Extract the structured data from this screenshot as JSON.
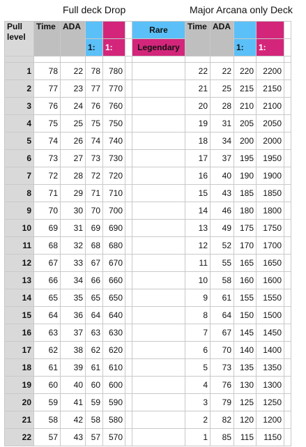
{
  "titles": {
    "left": "Full deck Drop",
    "right": "Major Arcana only Deck"
  },
  "headers": {
    "pull_level": "Pull level",
    "time": "Time",
    "ada": "ADA",
    "ratio_prefix": "1:",
    "rare": "Rare",
    "legendary": "Legendary",
    "time2": "Time",
    "ada2": "ADA"
  },
  "colors": {
    "blue": "#5bc0f8",
    "pink": "#d3267b",
    "gray": "#d9d9d9"
  },
  "rows": [
    {
      "level": "1",
      "time": "78",
      "ada": "22",
      "rare": "78",
      "leg": "780",
      "time2": "22",
      "ada2": "22",
      "rare2": "220",
      "leg2": "2200"
    },
    {
      "level": "2",
      "time": "77",
      "ada": "23",
      "rare": "77",
      "leg": "770",
      "time2": "21",
      "ada2": "25",
      "rare2": "215",
      "leg2": "2150"
    },
    {
      "level": "3",
      "time": "76",
      "ada": "24",
      "rare": "76",
      "leg": "760",
      "time2": "20",
      "ada2": "28",
      "rare2": "210",
      "leg2": "2100"
    },
    {
      "level": "4",
      "time": "75",
      "ada": "25",
      "rare": "75",
      "leg": "750",
      "time2": "19",
      "ada2": "31",
      "rare2": "205",
      "leg2": "2050"
    },
    {
      "level": "5",
      "time": "74",
      "ada": "26",
      "rare": "74",
      "leg": "740",
      "time2": "18",
      "ada2": "34",
      "rare2": "200",
      "leg2": "2000"
    },
    {
      "level": "6",
      "time": "73",
      "ada": "27",
      "rare": "73",
      "leg": "730",
      "time2": "17",
      "ada2": "37",
      "rare2": "195",
      "leg2": "1950"
    },
    {
      "level": "7",
      "time": "72",
      "ada": "28",
      "rare": "72",
      "leg": "720",
      "time2": "16",
      "ada2": "40",
      "rare2": "190",
      "leg2": "1900"
    },
    {
      "level": "8",
      "time": "71",
      "ada": "29",
      "rare": "71",
      "leg": "710",
      "time2": "15",
      "ada2": "43",
      "rare2": "185",
      "leg2": "1850"
    },
    {
      "level": "9",
      "time": "70",
      "ada": "30",
      "rare": "70",
      "leg": "700",
      "time2": "14",
      "ada2": "46",
      "rare2": "180",
      "leg2": "1800"
    },
    {
      "level": "10",
      "time": "69",
      "ada": "31",
      "rare": "69",
      "leg": "690",
      "time2": "13",
      "ada2": "49",
      "rare2": "175",
      "leg2": "1750"
    },
    {
      "level": "11",
      "time": "68",
      "ada": "32",
      "rare": "68",
      "leg": "680",
      "time2": "12",
      "ada2": "52",
      "rare2": "170",
      "leg2": "1700"
    },
    {
      "level": "12",
      "time": "67",
      "ada": "33",
      "rare": "67",
      "leg": "670",
      "time2": "11",
      "ada2": "55",
      "rare2": "165",
      "leg2": "1650"
    },
    {
      "level": "13",
      "time": "66",
      "ada": "34",
      "rare": "66",
      "leg": "660",
      "time2": "10",
      "ada2": "58",
      "rare2": "160",
      "leg2": "1600"
    },
    {
      "level": "14",
      "time": "65",
      "ada": "35",
      "rare": "65",
      "leg": "650",
      "time2": "9",
      "ada2": "61",
      "rare2": "155",
      "leg2": "1550"
    },
    {
      "level": "15",
      "time": "64",
      "ada": "36",
      "rare": "64",
      "leg": "640",
      "time2": "8",
      "ada2": "64",
      "rare2": "150",
      "leg2": "1500"
    },
    {
      "level": "16",
      "time": "63",
      "ada": "37",
      "rare": "63",
      "leg": "630",
      "time2": "7",
      "ada2": "67",
      "rare2": "145",
      "leg2": "1450"
    },
    {
      "level": "17",
      "time": "62",
      "ada": "38",
      "rare": "62",
      "leg": "620",
      "time2": "6",
      "ada2": "70",
      "rare2": "140",
      "leg2": "1400"
    },
    {
      "level": "18",
      "time": "61",
      "ada": "39",
      "rare": "61",
      "leg": "610",
      "time2": "5",
      "ada2": "73",
      "rare2": "135",
      "leg2": "1350"
    },
    {
      "level": "19",
      "time": "60",
      "ada": "40",
      "rare": "60",
      "leg": "600",
      "time2": "4",
      "ada2": "76",
      "rare2": "130",
      "leg2": "1300"
    },
    {
      "level": "20",
      "time": "59",
      "ada": "41",
      "rare": "59",
      "leg": "590",
      "time2": "3",
      "ada2": "79",
      "rare2": "125",
      "leg2": "1250"
    },
    {
      "level": "21",
      "time": "58",
      "ada": "42",
      "rare": "58",
      "leg": "580",
      "time2": "2",
      "ada2": "82",
      "rare2": "120",
      "leg2": "1200"
    },
    {
      "level": "22",
      "time": "57",
      "ada": "43",
      "rare": "57",
      "leg": "570",
      "time2": "1",
      "ada2": "85",
      "rare2": "115",
      "leg2": "1150"
    }
  ]
}
